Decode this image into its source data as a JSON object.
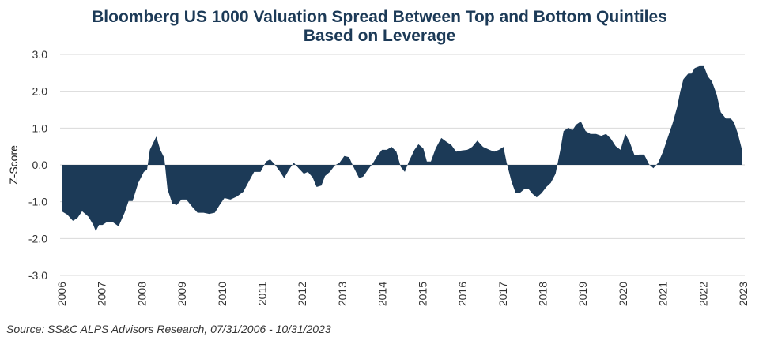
{
  "chart_data": {
    "type": "area",
    "title": [
      "Bloomberg US 1000 Valuation Spread Between Top and Bottom Quintiles",
      "Based on Leverage"
    ],
    "y_label": "Z-Score",
    "source": "Source: SS&C ALPS Advisors Research, 07/31/2006 - 10/31/2023",
    "color": "#1c3a57",
    "x": [
      2006.0,
      2006.14,
      2006.28,
      2006.39,
      2006.51,
      2006.67,
      2006.79,
      2006.85,
      2006.93,
      2007.02,
      2007.12,
      2007.28,
      2007.42,
      2007.57,
      2007.67,
      2007.77,
      2007.91,
      2008.05,
      2008.13,
      2008.2,
      2008.36,
      2008.46,
      2008.56,
      2008.64,
      2008.76,
      2008.87,
      2008.99,
      2009.11,
      2009.25,
      2009.39,
      2009.54,
      2009.68,
      2009.82,
      2009.94,
      2010.06,
      2010.21,
      2010.37,
      2010.53,
      2010.67,
      2010.8,
      2010.96,
      2011.1,
      2011.2,
      2011.31,
      2011.45,
      2011.55,
      2011.67,
      2011.79,
      2011.91,
      2012.04,
      2012.14,
      2012.26,
      2012.36,
      2012.48,
      2012.57,
      2012.69,
      2012.81,
      2012.93,
      2013.05,
      2013.17,
      2013.28,
      2013.42,
      2013.52,
      2013.64,
      2013.76,
      2013.87,
      2013.99,
      2014.11,
      2014.23,
      2014.35,
      2014.46,
      2014.56,
      2014.66,
      2014.8,
      2014.9,
      2015.02,
      2015.11,
      2015.21,
      2015.33,
      2015.47,
      2015.61,
      2015.72,
      2015.84,
      2015.98,
      2016.12,
      2016.24,
      2016.37,
      2016.51,
      2016.67,
      2016.79,
      2016.91,
      2017.02,
      2017.1,
      2017.22,
      2017.32,
      2017.42,
      2017.54,
      2017.65,
      2017.75,
      2017.85,
      2017.97,
      2018.09,
      2018.2,
      2018.32,
      2018.44,
      2018.52,
      2018.64,
      2018.74,
      2018.83,
      2018.95,
      2019.07,
      2019.19,
      2019.33,
      2019.46,
      2019.58,
      2019.7,
      2019.82,
      2019.94,
      2020.06,
      2020.17,
      2020.29,
      2020.41,
      2020.53,
      2020.65,
      2020.76,
      2020.88,
      2021.0,
      2021.12,
      2021.24,
      2021.35,
      2021.43,
      2021.51,
      2021.63,
      2021.71,
      2021.79,
      2021.91,
      2022.02,
      2022.12,
      2022.22,
      2022.34,
      2022.44,
      2022.57,
      2022.69,
      2022.77,
      2022.87,
      2022.97
    ],
    "values": [
      -1.26,
      -1.35,
      -1.52,
      -1.45,
      -1.26,
      -1.41,
      -1.63,
      -1.8,
      -1.63,
      -1.63,
      -1.56,
      -1.56,
      -1.67,
      -1.3,
      -0.98,
      -0.98,
      -0.49,
      -0.19,
      -0.13,
      0.41,
      0.77,
      0.41,
      0.19,
      -0.66,
      -1.05,
      -1.09,
      -0.94,
      -0.94,
      -1.13,
      -1.3,
      -1.3,
      -1.33,
      -1.3,
      -1.09,
      -0.9,
      -0.94,
      -0.86,
      -0.73,
      -0.45,
      -0.19,
      -0.19,
      0.09,
      0.15,
      0.02,
      -0.19,
      -0.36,
      -0.13,
      0.06,
      -0.09,
      -0.24,
      -0.19,
      -0.34,
      -0.6,
      -0.56,
      -0.3,
      -0.19,
      -0.02,
      0.06,
      0.24,
      0.21,
      -0.06,
      -0.36,
      -0.32,
      -0.13,
      0.04,
      0.24,
      0.41,
      0.41,
      0.49,
      0.36,
      -0.06,
      -0.19,
      0.09,
      0.41,
      0.56,
      0.45,
      0.09,
      0.09,
      0.45,
      0.73,
      0.62,
      0.54,
      0.36,
      0.39,
      0.41,
      0.49,
      0.66,
      0.49,
      0.41,
      0.36,
      0.41,
      0.49,
      0.06,
      -0.45,
      -0.75,
      -0.77,
      -0.66,
      -0.66,
      -0.79,
      -0.88,
      -0.77,
      -0.6,
      -0.49,
      -0.24,
      0.41,
      0.92,
      1.01,
      0.94,
      1.09,
      1.18,
      0.92,
      0.84,
      0.84,
      0.79,
      0.84,
      0.71,
      0.51,
      0.41,
      0.84,
      0.62,
      0.26,
      0.28,
      0.28,
      0.02,
      -0.09,
      0.06,
      0.36,
      0.75,
      1.13,
      1.56,
      1.99,
      2.33,
      2.48,
      2.48,
      2.63,
      2.68,
      2.68,
      2.4,
      2.27,
      1.91,
      1.43,
      1.26,
      1.26,
      1.16,
      0.84,
      0.41
    ],
    "xlim": [
      2006,
      2023
    ],
    "xticks": [
      2006,
      2007,
      2008,
      2009,
      2010,
      2011,
      2012,
      2013,
      2014,
      2015,
      2016,
      2017,
      2018,
      2019,
      2020,
      2021,
      2022,
      2023
    ],
    "ylim": [
      -3,
      3
    ],
    "yticks": [
      {
        "value": 3,
        "label": "3.0"
      },
      {
        "value": 2,
        "label": "2.0"
      },
      {
        "value": 1,
        "label": "1.0"
      },
      {
        "value": 0,
        "label": "0.0"
      },
      {
        "value": -1,
        "label": "-1.0"
      },
      {
        "value": -2,
        "label": "-2.0"
      },
      {
        "value": -3,
        "label": "-3.0"
      }
    ],
    "grid": true
  }
}
